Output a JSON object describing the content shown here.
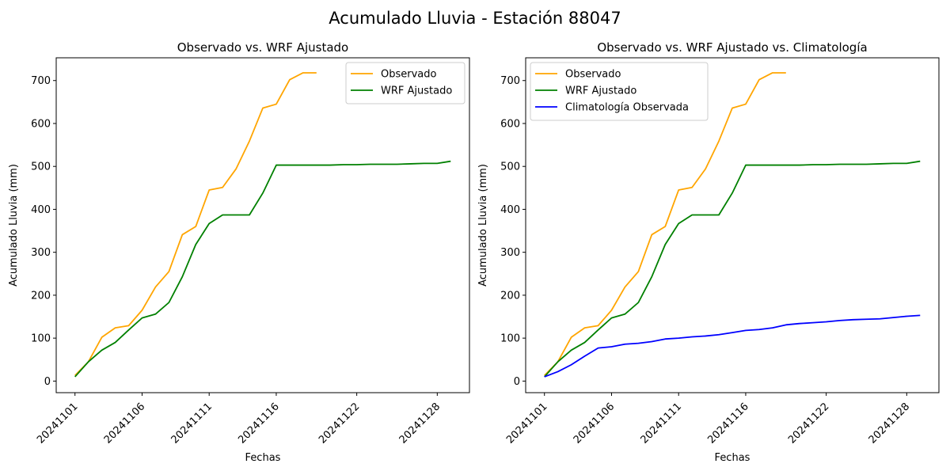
{
  "figure": {
    "suptitle": "Acumulado Lluvia - Estación 88047"
  },
  "chart_data": [
    {
      "type": "line",
      "title": "Observado vs. WRF Ajustado",
      "xlabel": "Fechas",
      "ylabel": "Acumulado Lluvia (mm)",
      "x": [
        "20241101",
        "20241102",
        "20241103",
        "20241104",
        "20241105",
        "20241106",
        "20241107",
        "20241108",
        "20241109",
        "20241110",
        "20241111",
        "20241112",
        "20241113",
        "20241114",
        "20241115",
        "20241116",
        "20241117",
        "20241118",
        "20241119",
        "20241120",
        "20241121",
        "20241122",
        "20241123",
        "20241124",
        "20241125",
        "20241126",
        "20241127",
        "20241128",
        "20241129"
      ],
      "xticks": [
        "20241101",
        "20241106",
        "20241111",
        "20241116",
        "20241122",
        "20241128"
      ],
      "yticks": [
        0,
        100,
        200,
        300,
        400,
        500,
        600,
        700
      ],
      "ylim": [
        -27,
        753
      ],
      "legend_position": "upper-right",
      "series": [
        {
          "name": "Observado",
          "color": "#ffa500",
          "values": [
            13,
            45,
            102,
            124,
            129,
            165,
            219,
            255,
            341,
            360,
            445,
            451,
            494,
            559,
            636,
            645,
            702,
            718,
            718,
            null,
            null,
            null,
            null,
            null,
            null,
            null,
            null,
            null,
            null
          ]
        },
        {
          "name": "WRF Ajustado",
          "color": "#008000",
          "values": [
            10,
            45,
            72,
            90,
            119,
            147,
            156,
            183,
            243,
            318,
            367,
            387,
            387,
            387,
            438,
            503,
            503,
            503,
            503,
            503,
            504,
            504,
            505,
            505,
            505,
            506,
            507,
            507,
            512
          ]
        }
      ]
    },
    {
      "type": "line",
      "title": "Observado vs. WRF Ajustado vs. Climatología",
      "xlabel": "Fechas",
      "ylabel": "Acumulado Lluvia (mm)",
      "x": [
        "20241101",
        "20241102",
        "20241103",
        "20241104",
        "20241105",
        "20241106",
        "20241107",
        "20241108",
        "20241109",
        "20241110",
        "20241111",
        "20241112",
        "20241113",
        "20241114",
        "20241115",
        "20241116",
        "20241117",
        "20241118",
        "20241119",
        "20241120",
        "20241121",
        "20241122",
        "20241123",
        "20241124",
        "20241125",
        "20241126",
        "20241127",
        "20241128",
        "20241129"
      ],
      "xticks": [
        "20241101",
        "20241106",
        "20241111",
        "20241116",
        "20241122",
        "20241128"
      ],
      "yticks": [
        0,
        100,
        200,
        300,
        400,
        500,
        600,
        700
      ],
      "ylim": [
        -27,
        753
      ],
      "legend_position": "upper-left",
      "series": [
        {
          "name": "Observado",
          "color": "#ffa500",
          "values": [
            13,
            45,
            102,
            124,
            129,
            165,
            219,
            255,
            341,
            360,
            445,
            451,
            494,
            559,
            636,
            645,
            702,
            718,
            718,
            null,
            null,
            null,
            null,
            null,
            null,
            null,
            null,
            null,
            null
          ]
        },
        {
          "name": "WRF Ajustado",
          "color": "#008000",
          "values": [
            10,
            45,
            72,
            90,
            119,
            147,
            156,
            183,
            243,
            318,
            367,
            387,
            387,
            387,
            438,
            503,
            503,
            503,
            503,
            503,
            504,
            504,
            505,
            505,
            505,
            506,
            507,
            507,
            512
          ]
        },
        {
          "name": "Climatología Observada",
          "color": "#0000ff",
          "values": [
            10,
            22,
            38,
            58,
            77,
            80,
            86,
            88,
            92,
            98,
            100,
            103,
            105,
            108,
            113,
            118,
            120,
            124,
            131,
            134,
            136,
            138,
            141,
            143,
            144,
            145,
            148,
            151,
            153
          ]
        }
      ]
    }
  ]
}
